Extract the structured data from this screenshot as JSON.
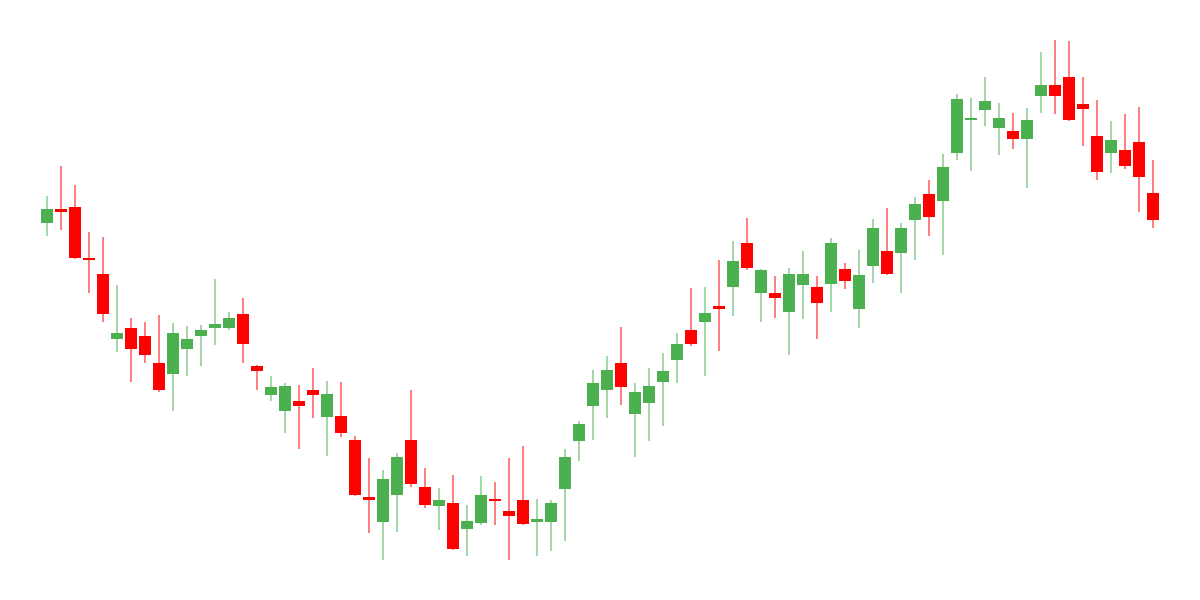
{
  "chart_data": {
    "type": "candlestick",
    "up_color": "#4caf50",
    "down_color": "#ff0000",
    "ylim": [
      0,
      120
    ],
    "open": [
      75.4,
      78.2,
      78.6,
      68.4,
      65.2,
      52.2,
      54.4,
      52.8,
      47.4,
      45.2,
      50.2,
      52.8,
      54.4,
      54.4,
      57.2,
      46.8,
      41,
      37.8,
      39.8,
      42,
      36.6,
      36.8,
      32,
      20.6,
      15.6,
      21,
      32,
      22.6,
      18.8,
      19.4,
      14.2,
      15.4,
      20.2,
      17.8,
      20,
      15.6,
      15.6,
      22.2,
      31.8,
      38.8,
      42,
      47.4,
      37.2,
      39.4,
      43.6,
      48,
      54,
      55.6,
      58.8,
      62.6,
      71.4,
      61.4,
      61.4,
      57.6,
      63,
      62.6,
      63.2,
      66.2,
      58.2,
      66.8,
      69.8,
      69.4,
      76,
      81.2,
      79.8,
      89.4,
      96,
      98,
      94.4,
      93.8,
      92.2,
      100.8,
      103,
      104.6,
      99.2,
      92.8,
      89.4,
      90,
      91.6,
      81.4
    ],
    "high": [
      80.8,
      86.8,
      83,
      73.6,
      72.6,
      63,
      56.4,
      55.6,
      57,
      55.4,
      54.8,
      55,
      64.2,
      57.6,
      60.4,
      47,
      44.8,
      43.4,
      43,
      46.4,
      43.8,
      43.6,
      32.8,
      28.4,
      26,
      29.4,
      42,
      26.4,
      22.4,
      25,
      19,
      24.8,
      23.6,
      28.4,
      30.8,
      20.2,
      20,
      30.2,
      35.8,
      46,
      48.8,
      54.6,
      43.4,
      46.4,
      49.4,
      53.4,
      62.4,
      62.6,
      68,
      71.8,
      76.4,
      66.2,
      64.8,
      66.4,
      69.8,
      64.8,
      72.4,
      67.4,
      70,
      76.2,
      78.4,
      75.4,
      80.6,
      84,
      89.2,
      101.2,
      100.4,
      104.6,
      99.4,
      97.4,
      98.4,
      109.6,
      112,
      111.8,
      104.6,
      100,
      95.8,
      97.2,
      98.6,
      88
    ],
    "low": [
      72.8,
      74,
      68.2,
      61.4,
      55.6,
      49.6,
      43.6,
      47.4,
      41.6,
      37.8,
      44.8,
      46.8,
      51,
      54,
      47.4,
      42,
      39.8,
      33.4,
      30.2,
      36.4,
      28.8,
      32.6,
      20.8,
      13.4,
      8,
      13.6,
      22.6,
      18.4,
      14,
      10,
      8.8,
      15,
      15,
      8,
      15,
      8.8,
      9.8,
      11.8,
      27.8,
      32,
      36.4,
      39,
      28.6,
      31.8,
      34.8,
      43.4,
      50.8,
      44.8,
      49.8,
      56.8,
      66,
      55.6,
      56.4,
      49,
      56.2,
      52.2,
      57.6,
      62.2,
      54.4,
      63.4,
      65,
      61.4,
      68,
      72.8,
      69,
      88,
      85.8,
      94.8,
      89,
      90.2,
      82.4,
      97.4,
      97.2,
      95.8,
      90.8,
      84,
      85.4,
      86.2,
      77.6,
      74.4
    ],
    "close": [
      78.2,
      77.6,
      68.4,
      68.2,
      57.2,
      53.4,
      50.2,
      49,
      42,
      53.4,
      52.2,
      54,
      55.2,
      56.4,
      51.2,
      45.8,
      42.6,
      42.8,
      38.8,
      41,
      41.2,
      33.4,
      21,
      20,
      24.2,
      28.6,
      23.2,
      19,
      20,
      10.2,
      15.8,
      21,
      20,
      16.8,
      15.2,
      16.2,
      19.4,
      28.6,
      35.2,
      43.4,
      46,
      42.6,
      41.6,
      42.8,
      45.8,
      51.2,
      51.2,
      57.4,
      58.2,
      67.8,
      66.4,
      66,
      60.4,
      65.2,
      65.2,
      59.4,
      71.4,
      63.8,
      65,
      74.4,
      65.2,
      74.4,
      79.2,
      76.6,
      86.6,
      100.2,
      96.4,
      99.8,
      96.4,
      92.2,
      96,
      103,
      100.8,
      96,
      98.2,
      85.6,
      92,
      86.8,
      84.6,
      76
    ]
  }
}
